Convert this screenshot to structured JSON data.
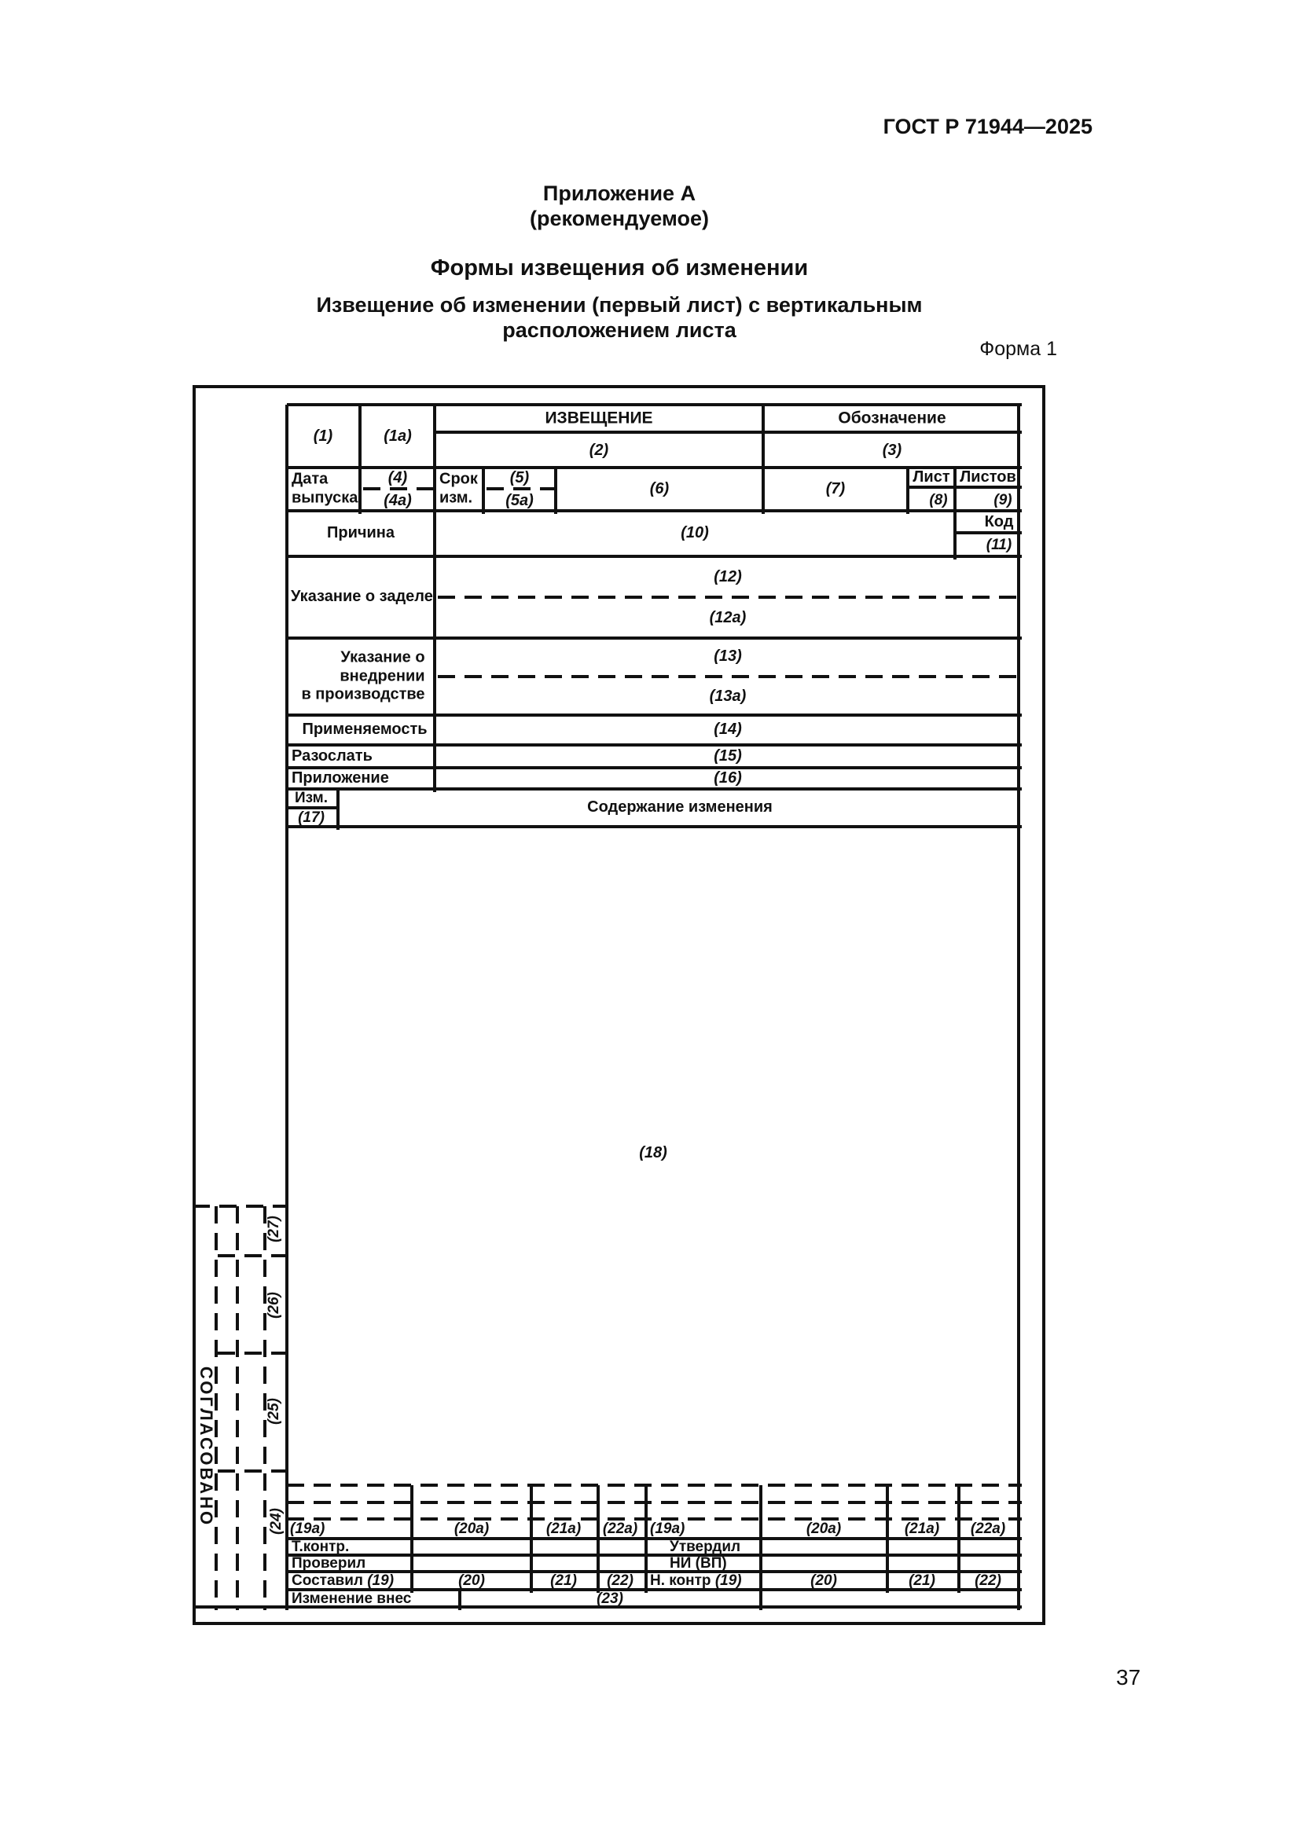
{
  "page": {
    "standard_ref": "ГОСТ Р 71944—2025",
    "appendix_title": "Приложение А",
    "appendix_note": "(рекомендуемое)",
    "section_title": "Формы извещения об изменении",
    "form_caption": "Извещение об изменении (первый лист) с вертикальным расположением листа",
    "form_number_label": "Форма 1",
    "page_number": "37"
  },
  "form": {
    "header": {
      "f1": "(1)",
      "f1a": "(1а)",
      "notice_title": "ИЗВЕЩЕНИЕ",
      "f2": "(2)",
      "designation_title": "Обозначение",
      "f3": "(3)"
    },
    "issue_row": {
      "date_label": "Дата\nвыпуска",
      "f4": "(4)",
      "f4a": "(4а)",
      "term_label": "Срок\nизм.",
      "f5": "(5)",
      "f5a": "(5а)",
      "f6": "(6)",
      "f7": "(7)",
      "sheet_label": "Лист",
      "f8": "(8)",
      "sheets_label": "Листов",
      "f9": "(9)"
    },
    "reason_row": {
      "label": "Причина",
      "f10": "(10)",
      "code_label": "Код",
      "f11": "(11)"
    },
    "backlog_row": {
      "label": "Указание о заделе",
      "f12": "(12)",
      "f12a": "(12а)"
    },
    "implementation_row": {
      "label": "Указание о\nвнедрении\nв производстве",
      "f13": "(13)",
      "f13a": "(13а)"
    },
    "applicability_row": {
      "label": "Применяемость",
      "f14": "(14)"
    },
    "distribute_row": {
      "label": "Разослать",
      "f15": "(15)"
    },
    "attachment_row": {
      "label": "Приложение",
      "f16": "(16)"
    },
    "change_header_row": {
      "izm_label": "Изм.",
      "f17": "(17)",
      "content_label": "Содержание изменения"
    },
    "content_area": {
      "f18": "(18)"
    },
    "agreed_block": {
      "label": "СОГЛАСОВАНО",
      "f27": "(27)",
      "f26": "(26)",
      "f25": "(25)",
      "f24": "(24)"
    },
    "signature_block": {
      "sub_row": {
        "f19a_l": "(19а)",
        "f20a_l": "(20а)",
        "f21a_l": "(21а)",
        "f22a_l": "(22а)",
        "f19a_r": "(19а)",
        "f20a_r": "(20а)",
        "f21a_r": "(21а)",
        "f22a_r": "(22а)"
      },
      "tcontrol_label": "Т.контр.",
      "approved_label": "Утвердил",
      "checked_label": "Проверил",
      "ni_vp_label": "НИ (ВП)",
      "composed_label": "Составил",
      "f19_l": "(19)",
      "f20_l": "(20)",
      "f21_l": "(21)",
      "f22_l": "(22)",
      "ncontrol_label": "Н. контр",
      "f19_r": "(19)",
      "f20_r": "(20)",
      "f21_r": "(21)",
      "f22_r": "(22)",
      "change_made_label": "Изменение внес",
      "f23": "(23)"
    }
  }
}
